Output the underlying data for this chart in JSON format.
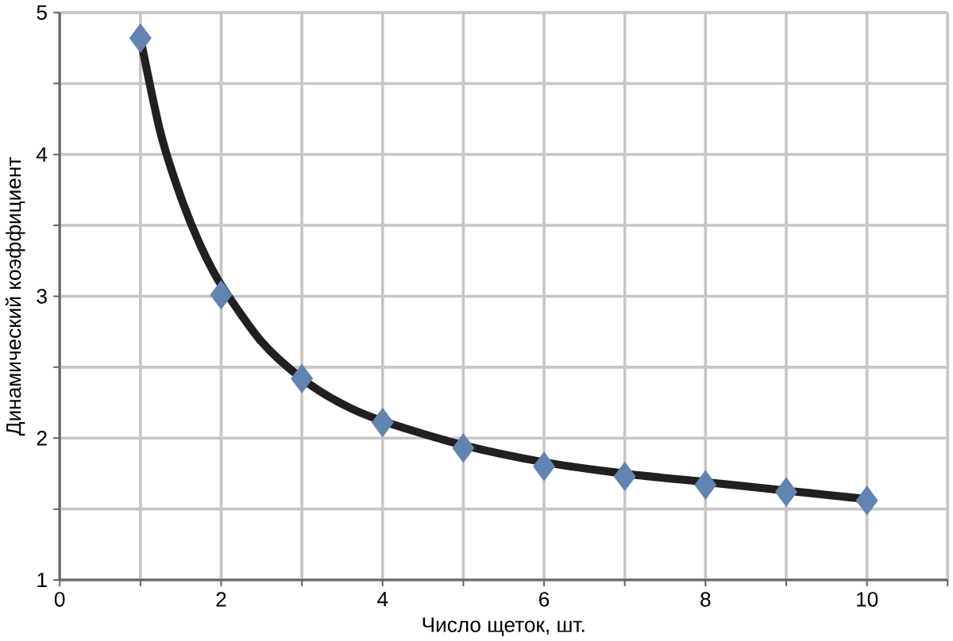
{
  "chart_data": {
    "type": "scatter",
    "xlabel": "Число щеток, шт.",
    "ylabel": "Динамический коэффициент",
    "xlim": [
      0,
      11
    ],
    "ylim": [
      1,
      5
    ],
    "xticks": [
      0,
      {
        "value": 1,
        "label": null
      },
      2,
      {
        "value": 3,
        "label": null
      },
      4,
      {
        "value": 5,
        "label": null
      },
      6,
      {
        "value": 7,
        "label": null
      },
      8,
      {
        "value": 9,
        "label": null
      },
      10,
      {
        "value": 11,
        "label": null
      }
    ],
    "yticks": [
      1,
      {
        "value": 1.5,
        "label": null
      },
      2,
      {
        "value": 2.5,
        "label": null
      },
      3,
      {
        "value": 3.5,
        "label": null
      },
      4,
      {
        "value": 4.5,
        "label": null
      },
      5
    ],
    "grid": true,
    "series": [
      {
        "color": "#6184b0",
        "marker": "diamond",
        "x": [
          1,
          2,
          3,
          4,
          5,
          6,
          7,
          8,
          9,
          10
        ],
        "values": [
          4.82,
          3.01,
          2.42,
          2.11,
          1.93,
          1.8,
          1.73,
          1.67,
          1.62,
          1.56
        ]
      },
      {
        "type": "line",
        "color": "#231f20",
        "marker": "none",
        "line_style": "solid",
        "x": [
          1,
          1.25,
          1.5,
          1.75,
          2,
          2.5,
          3,
          3.5,
          4,
          5,
          6,
          7,
          8,
          9,
          10
        ],
        "values": [
          4.82,
          4.15,
          3.7,
          3.35,
          3.08,
          2.68,
          2.42,
          2.24,
          2.12,
          1.95,
          1.83,
          1.75,
          1.69,
          1.63,
          1.57
        ]
      }
    ]
  }
}
